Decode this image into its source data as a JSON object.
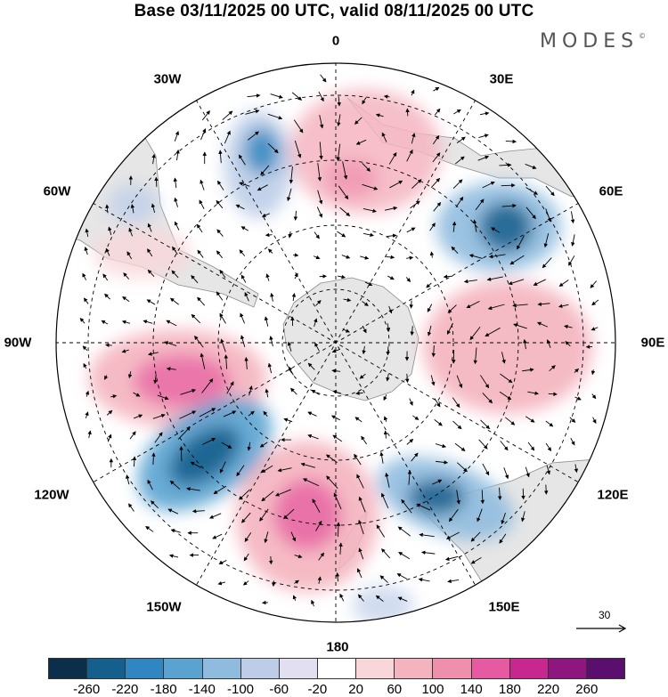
{
  "title": "Base 03/11/2025 00 UTC, valid 08/11/2025 00 UTC",
  "logo": "MODES",
  "logo_mark": "©",
  "longitude_labels": {
    "top": "0",
    "top_right": "30E",
    "right_upper": "60E",
    "right": "90E",
    "right_lower": "120E",
    "bottom_right": "150E",
    "bottom": "180",
    "bottom_left": "150W",
    "left_lower": "120W",
    "left": "90W",
    "left_upper": "60W",
    "top_left": "30W"
  },
  "reference_vector": {
    "label": "30"
  },
  "colorbar": {
    "colors": [
      "#0b2f4a",
      "#155f8c",
      "#2f86c0",
      "#5aa3d0",
      "#8fbbdf",
      "#bdcde8",
      "#e2e0f0",
      "#ffffff",
      "#f9d6da",
      "#f4b4bf",
      "#ef8fae",
      "#e55aa0",
      "#c8278f",
      "#8e177f",
      "#5a0e6e"
    ],
    "tick_labels": [
      "-260",
      "-220",
      "-180",
      "-140",
      "-100",
      "-60",
      "-20",
      "20",
      "60",
      "100",
      "140",
      "180",
      "220",
      "260"
    ]
  },
  "colors": {
    "land": "#e6e6e6",
    "coast": "#888888",
    "grid": "#000000"
  }
}
